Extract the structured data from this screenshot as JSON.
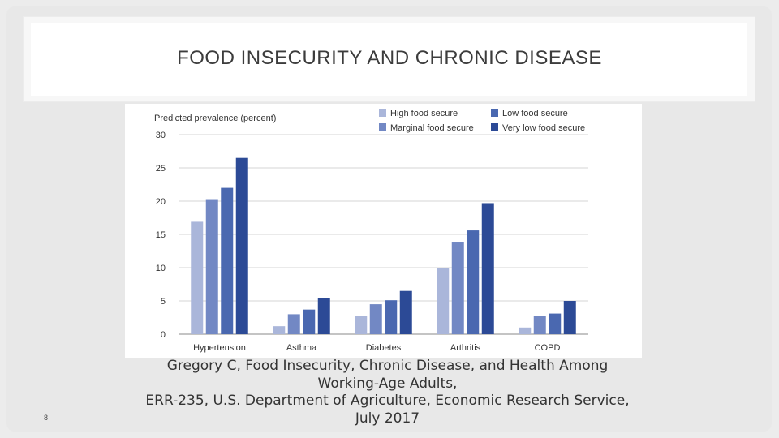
{
  "slide": {
    "title": "FOOD INSECURITY AND CHRONIC DISEASE",
    "caption_lines": [
      "Gregory C, Food Insecurity, Chronic Disease, and Health Among",
      "Working-Age Adults,",
      "ERR-235, U.S. Department of Agriculture, Economic Research Service,",
      "July 2017"
    ],
    "page_number": "8"
  },
  "chart_data": {
    "type": "bar",
    "ylabel": "Predicted prevalence (percent)",
    "ylim": [
      0,
      30
    ],
    "yticks": [
      "0",
      "5",
      "10",
      "15",
      "20",
      "25",
      "30"
    ],
    "grid": true,
    "legend_placement": "top-right",
    "categories": [
      "Hypertension",
      "Asthma",
      "Diabetes",
      "Arthritis",
      "COPD"
    ],
    "series": [
      {
        "name": "High food secure",
        "color": "#aab6da",
        "values": [
          16.9,
          1.2,
          2.8,
          10.0,
          1.0
        ]
      },
      {
        "name": "Marginal food secure",
        "color": "#7288c4",
        "values": [
          20.3,
          3.0,
          4.5,
          13.9,
          2.7
        ]
      },
      {
        "name": "Low food secure",
        "color": "#4a68b0",
        "values": [
          22.0,
          3.7,
          5.1,
          15.6,
          3.1
        ]
      },
      {
        "name": "Very low food secure",
        "color": "#2c4a96",
        "values": [
          26.5,
          5.4,
          6.5,
          19.7,
          5.0
        ]
      }
    ]
  }
}
